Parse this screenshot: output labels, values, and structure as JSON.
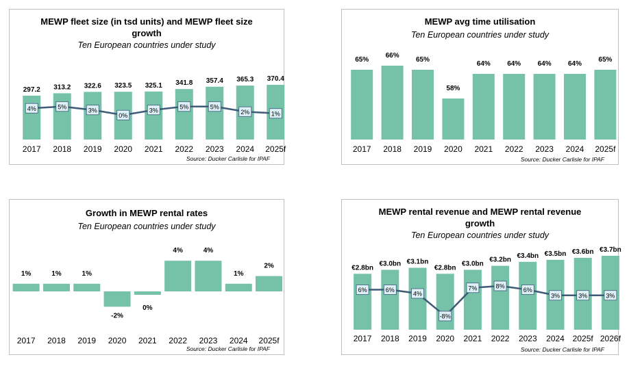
{
  "source_text": "Source: Ducker Carlisle for IPAF",
  "colors": {
    "bar": "#76c2a8",
    "line": "#3e5b78",
    "box_fill": "#dff1f8",
    "box_stroke": "#3e5b78"
  },
  "chart_data": [
    {
      "type": "bar",
      "title": "MEWP fleet size (in tsd units) and MEWP fleet size growth",
      "title_lines": [
        "MEWP fleet size (in tsd units) and MEWP fleet size",
        "growth"
      ],
      "subtitle": "Ten European countries under study",
      "categories": [
        "2017",
        "2018",
        "2019",
        "2020",
        "2021",
        "2022",
        "2023",
        "2024",
        "2025f"
      ],
      "values": [
        297.2,
        313.2,
        322.6,
        323.5,
        325.1,
        341.8,
        357.4,
        365.3,
        370.4
      ],
      "value_labels": [
        "297.2",
        "313.2",
        "322.6",
        "323.5",
        "325.1",
        "341.8",
        "357.4",
        "365.3",
        "370.4"
      ],
      "line_values": [
        4,
        5,
        3,
        0,
        3,
        5,
        5,
        2,
        1
      ],
      "line_labels": [
        "4%",
        "5%",
        "3%",
        "0%",
        "3%",
        "5%",
        "5%",
        "2%",
        "1%"
      ],
      "grid": false,
      "legend": "none"
    },
    {
      "type": "bar",
      "title": "MEWP avg time utilisation",
      "title_lines": [
        "MEWP avg time utilisation"
      ],
      "subtitle": "Ten European countries under study",
      "categories": [
        "2017",
        "2018",
        "2019",
        "2020",
        "2021",
        "2022",
        "2023",
        "2024",
        "2025f"
      ],
      "values": [
        65,
        66,
        65,
        58,
        64,
        64,
        64,
        64,
        65
      ],
      "value_labels": [
        "65%",
        "66%",
        "65%",
        "58%",
        "64%",
        "64%",
        "64%",
        "64%",
        "65%"
      ],
      "grid": false,
      "legend": "none"
    },
    {
      "type": "bar",
      "title": "Growth in MEWP rental rates",
      "title_lines": [
        "Growth in MEWP rental rates"
      ],
      "subtitle": "Ten European countries under study",
      "categories": [
        "2017",
        "2018",
        "2019",
        "2020",
        "2021",
        "2022",
        "2023",
        "2024",
        "2025f"
      ],
      "values": [
        1,
        1,
        1,
        -2,
        0,
        4,
        4,
        1,
        2
      ],
      "value_labels": [
        "1%",
        "1%",
        "1%",
        "-2%",
        "0%",
        "4%",
        "4%",
        "1%",
        "2%"
      ],
      "grid": false,
      "legend": "none"
    },
    {
      "type": "bar",
      "title": "MEWP rental revenue and MEWP rental revenue growth",
      "title_lines": [
        "MEWP rental revenue and MEWP rental revenue",
        "growth"
      ],
      "subtitle": "Ten European countries under study",
      "categories": [
        "2017",
        "2018",
        "2019",
        "2020",
        "2021",
        "2022",
        "2023",
        "2024",
        "2025f",
        "2026f"
      ],
      "values": [
        2.8,
        3.0,
        3.1,
        2.8,
        3.0,
        3.2,
        3.4,
        3.5,
        3.6,
        3.7
      ],
      "value_labels": [
        "€2.8bn",
        "€3.0bn",
        "€3.1bn",
        "€2.8bn",
        "€3.0bn",
        "€3.2bn",
        "€3.4bn",
        "€3.5bn",
        "€3.6bn",
        "€3.7bn"
      ],
      "line_values": [
        6,
        6,
        4,
        -8,
        7,
        8,
        6,
        3,
        3,
        3
      ],
      "line_labels": [
        "6%",
        "6%",
        "4%",
        "-8%",
        "7%",
        "8%",
        "6%",
        "3%",
        "3%",
        "3%"
      ],
      "grid": false,
      "legend": "none"
    }
  ]
}
